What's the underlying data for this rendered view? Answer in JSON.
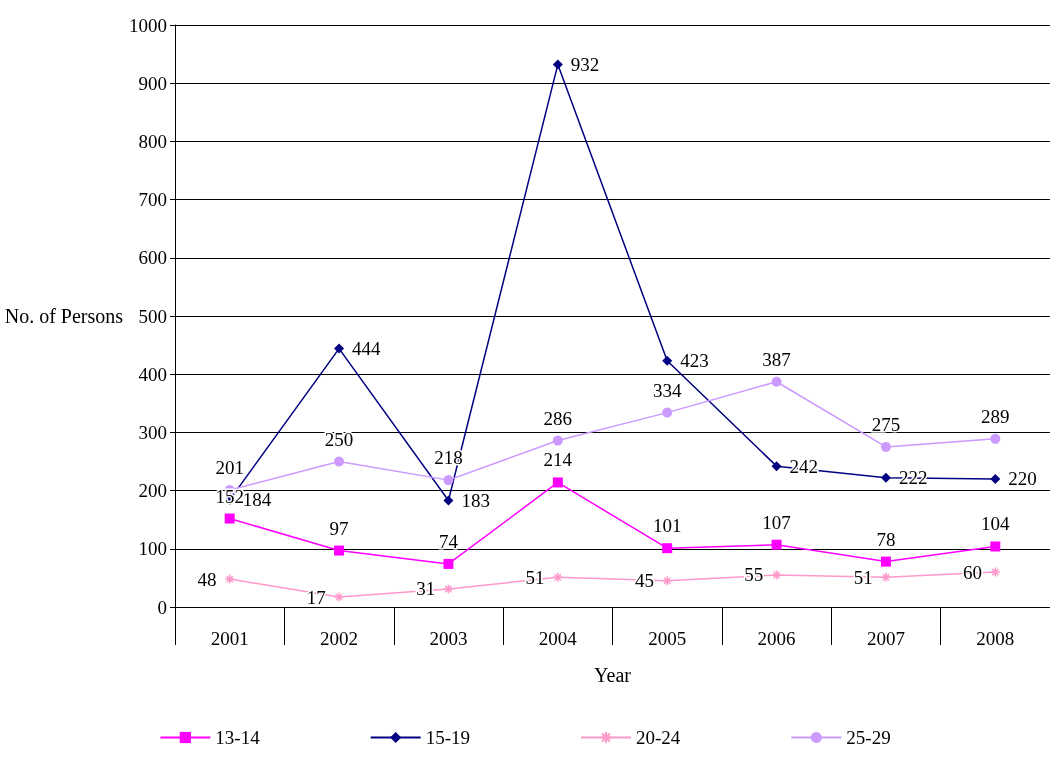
{
  "chart_data": {
    "type": "line",
    "xlabel": "Year",
    "ylabel": "No. of Persons",
    "categories": [
      "2001",
      "2002",
      "2003",
      "2004",
      "2005",
      "2006",
      "2007",
      "2008"
    ],
    "series": [
      {
        "name": "13-14",
        "color": "#ff00ff",
        "marker": "square",
        "values": [
          152,
          97,
          74,
          214,
          101,
          107,
          78,
          104
        ]
      },
      {
        "name": "15-19",
        "color": "#000080",
        "marker": "diamond",
        "values": [
          184,
          444,
          183,
          932,
          423,
          242,
          222,
          220
        ]
      },
      {
        "name": "20-24",
        "color": "#ff99cc",
        "marker": "cross",
        "values": [
          48,
          17,
          31,
          51,
          45,
          55,
          51,
          60
        ]
      },
      {
        "name": "25-29",
        "color": "#cc99ff",
        "marker": "circle",
        "values": [
          201,
          250,
          218,
          286,
          334,
          387,
          275,
          289
        ]
      }
    ],
    "ylim": [
      0,
      1000
    ],
    "yticks": [
      0,
      100,
      200,
      300,
      400,
      500,
      600,
      700,
      800,
      900,
      1000
    ],
    "grid": "y",
    "legend": "bottom",
    "data_labels": true,
    "line_style": "solid"
  }
}
